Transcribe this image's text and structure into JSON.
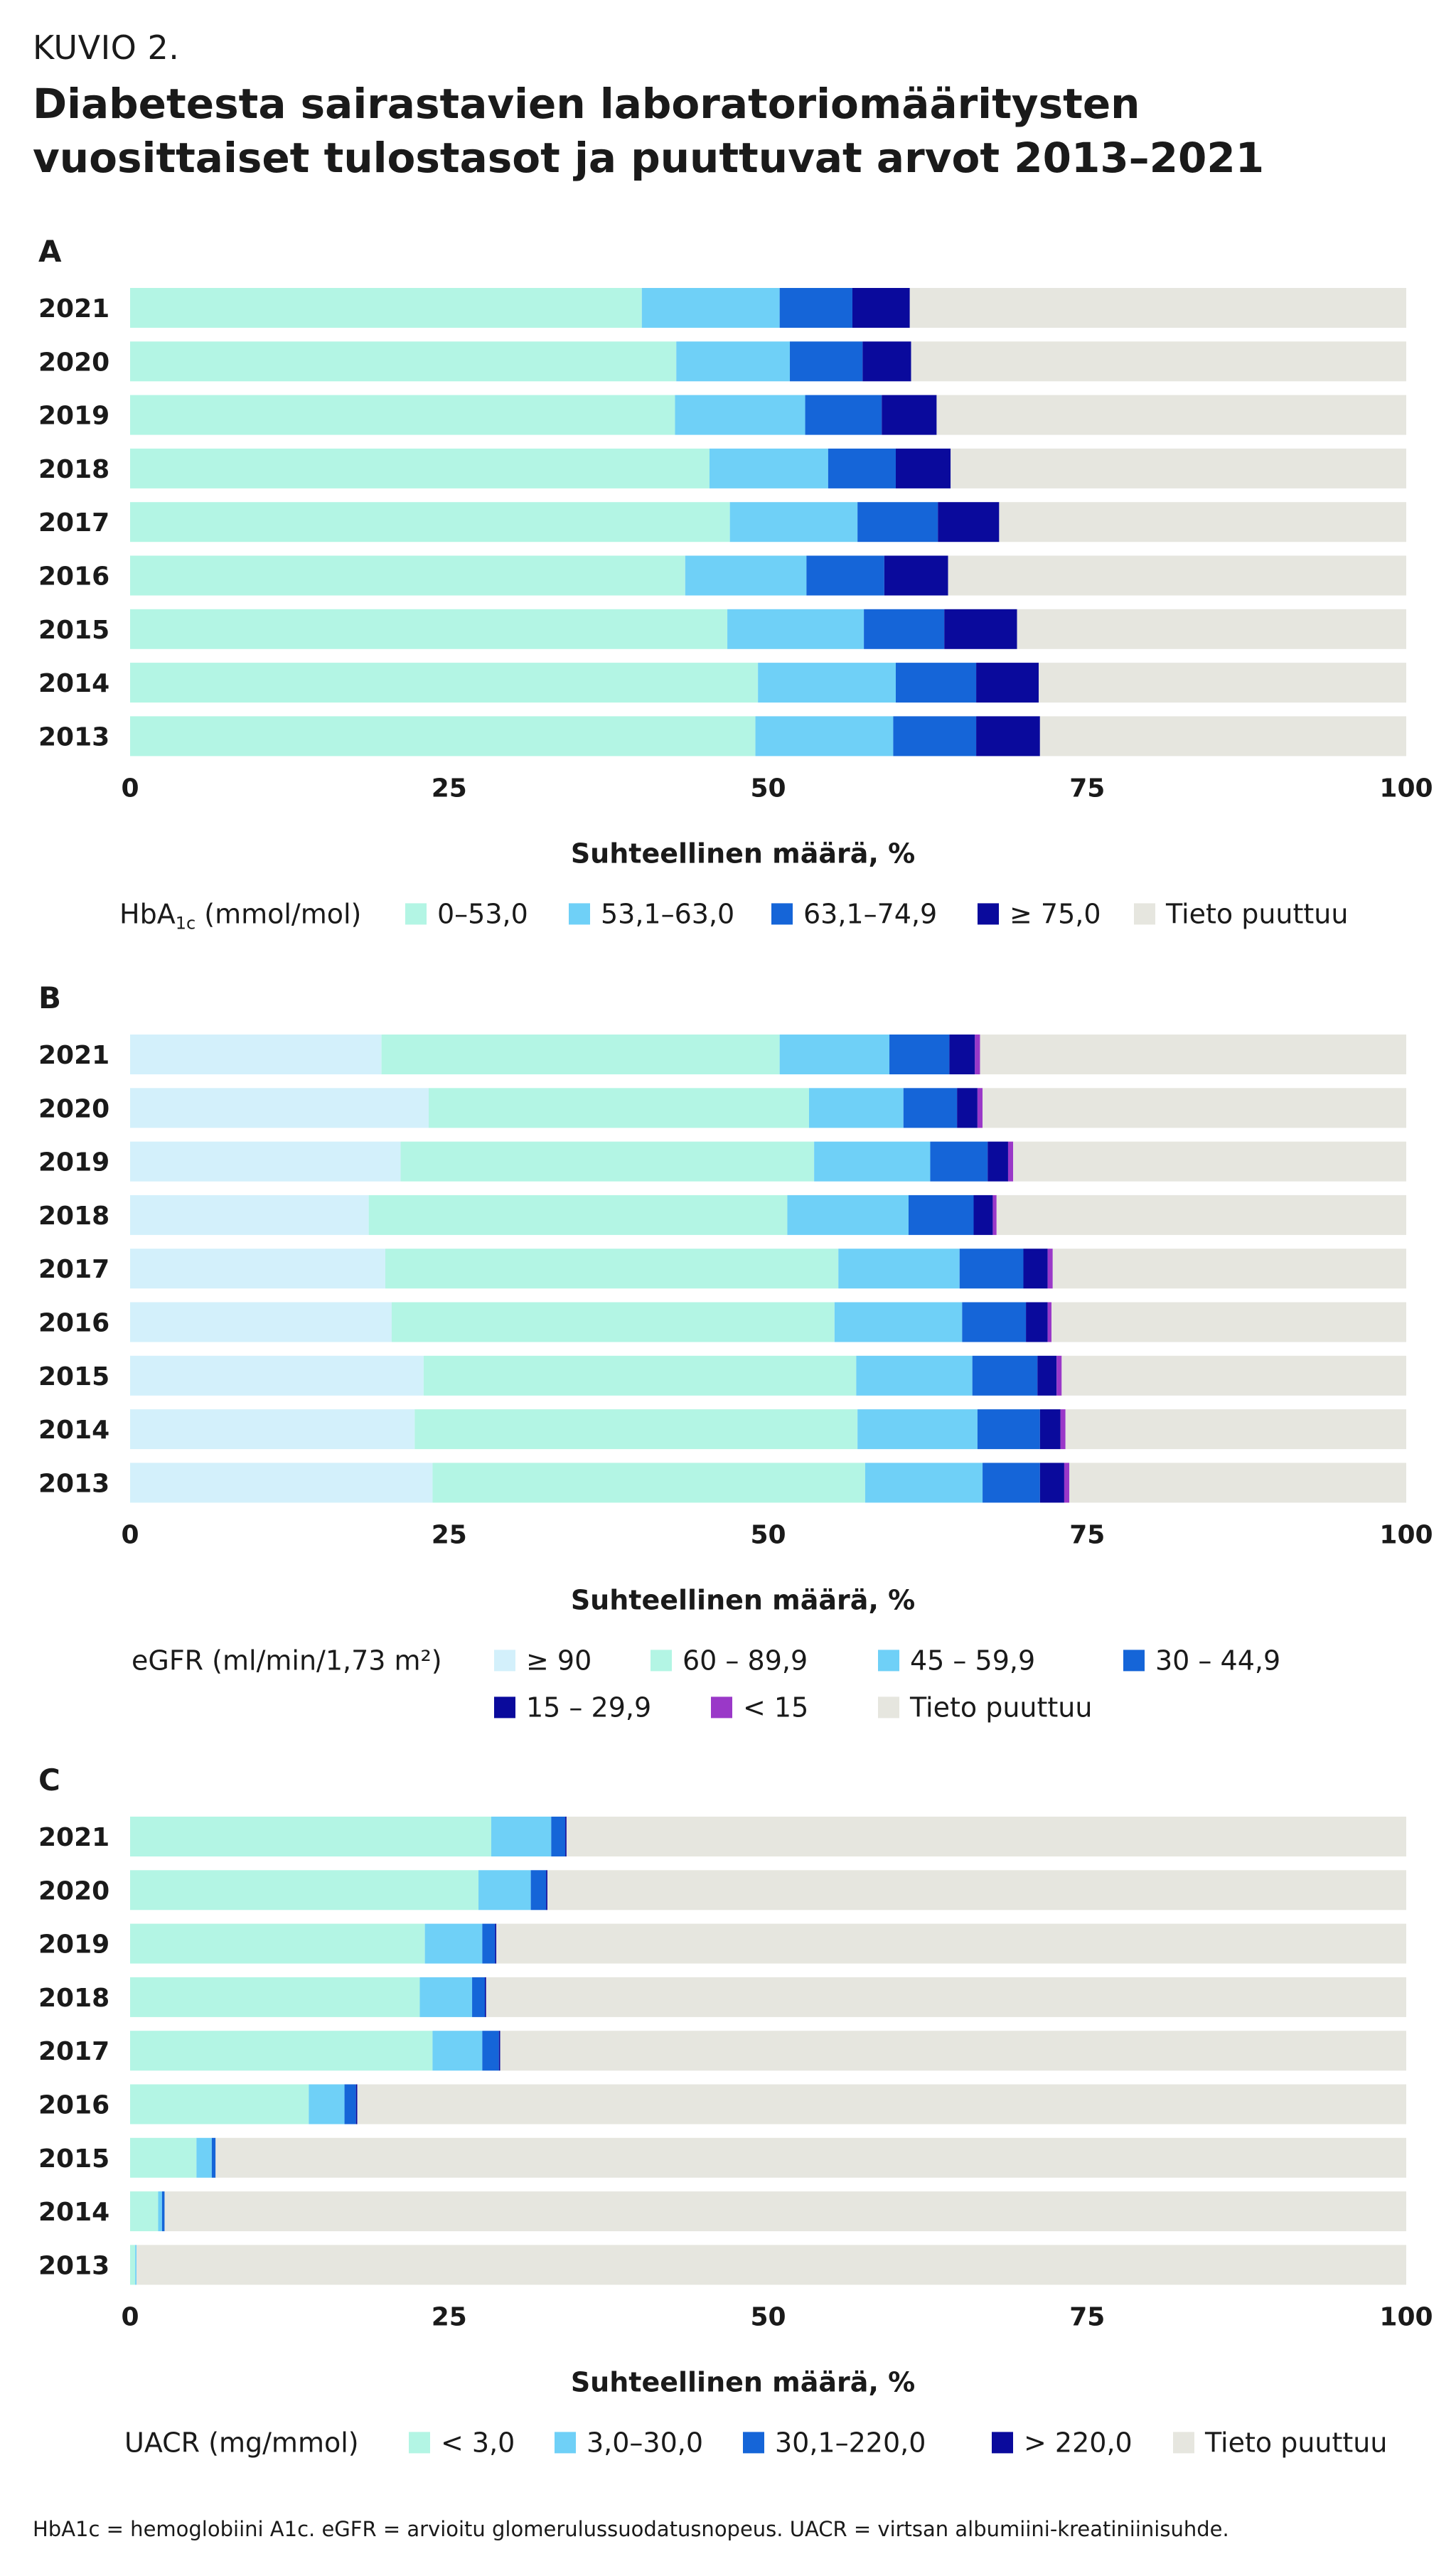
{
  "header": {
    "kicker": "KUVIO 2.",
    "title": "Diabetesta sairastavien laboratoriomääritysten vuosittaiset tulostasot ja puuttuvat arvot 2013–2021"
  },
  "footnote": "HbA1c = hemoglobiini A1c. eGFR = arvioitu glomerulussuodatusnopeus. UACR = virtsan albumiini-kreatiniinisuhde.",
  "chart_data": [
    {
      "type": "bar",
      "orientation": "horizontal",
      "stacked": true,
      "panel": "A",
      "categories": [
        "2021",
        "2020",
        "2019",
        "2018",
        "2017",
        "2016",
        "2015",
        "2014",
        "2013"
      ],
      "xlabel": "Suhteellinen määrä, %",
      "xlim": [
        0,
        100
      ],
      "xticks": [
        0,
        25,
        50,
        75,
        100
      ],
      "legend_title": "HbA1c (mmol/mol)",
      "legend_position": "bottom",
      "series": [
        {
          "name": "0–53,0",
          "color": "#b3f5e4",
          "values": [
            40.1,
            42.8,
            42.7,
            45.4,
            47.0,
            43.5,
            46.8,
            49.2,
            49.0
          ]
        },
        {
          "name": "53,1–63,0",
          "color": "#6fd0f7",
          "values": [
            10.8,
            8.9,
            10.2,
            9.3,
            10.0,
            9.5,
            10.7,
            10.8,
            10.8
          ]
        },
        {
          "name": "63,1–74,9",
          "color": "#1565d8",
          "values": [
            5.7,
            5.7,
            6.0,
            5.3,
            6.3,
            6.1,
            6.3,
            6.3,
            6.5
          ]
        },
        {
          "name": "≥ 75,0",
          "color": "#0a0a9c",
          "values": [
            4.5,
            3.8,
            4.3,
            4.3,
            4.8,
            5.0,
            5.7,
            4.9,
            5.0
          ]
        },
        {
          "name": "Tieto puuttuu",
          "color": "#e6e6df",
          "values": [
            38.9,
            38.8,
            36.8,
            35.7,
            31.9,
            35.9,
            30.5,
            28.8,
            28.7
          ]
        }
      ]
    },
    {
      "type": "bar",
      "orientation": "horizontal",
      "stacked": true,
      "panel": "B",
      "categories": [
        "2021",
        "2020",
        "2019",
        "2018",
        "2017",
        "2016",
        "2015",
        "2014",
        "2013"
      ],
      "xlabel": "Suhteellinen määrä, %",
      "xlim": [
        0,
        100
      ],
      "xticks": [
        0,
        25,
        50,
        75,
        100
      ],
      "legend_title": "eGFR (ml/min/1,73 m²)",
      "legend_position": "bottom",
      "series": [
        {
          "name": "≥ 90",
          "color": "#d3f0fb",
          "values": [
            19.7,
            23.4,
            21.2,
            18.7,
            20.0,
            20.5,
            23.0,
            22.3,
            23.7
          ]
        },
        {
          "name": "60 – 89,9",
          "color": "#b3f5e4",
          "values": [
            31.2,
            29.8,
            32.4,
            32.8,
            35.5,
            34.7,
            33.9,
            34.7,
            33.9
          ]
        },
        {
          "name": "45 – 59,9",
          "color": "#6fd0f7",
          "values": [
            8.6,
            7.4,
            9.1,
            9.5,
            9.5,
            10.0,
            9.1,
            9.4,
            9.2
          ]
        },
        {
          "name": "30 – 44,9",
          "color": "#1565d8",
          "values": [
            4.7,
            4.2,
            4.5,
            5.1,
            5.0,
            5.0,
            5.1,
            4.9,
            4.5
          ]
        },
        {
          "name": "15 – 29,9",
          "color": "#0a0a9c",
          "values": [
            2.0,
            1.6,
            1.6,
            1.5,
            1.9,
            1.7,
            1.5,
            1.6,
            1.9
          ]
        },
        {
          "name": "< 15",
          "color": "#9a38c8",
          "values": [
            0.4,
            0.4,
            0.4,
            0.3,
            0.4,
            0.3,
            0.4,
            0.4,
            0.4
          ]
        },
        {
          "name": "Tieto puuttuu",
          "color": "#e6e6df",
          "values": [
            33.4,
            33.2,
            30.8,
            32.1,
            27.7,
            27.8,
            27.0,
            26.7,
            26.4
          ]
        }
      ]
    },
    {
      "type": "bar",
      "orientation": "horizontal",
      "stacked": true,
      "panel": "C",
      "categories": [
        "2021",
        "2020",
        "2019",
        "2018",
        "2017",
        "2016",
        "2015",
        "2014",
        "2013"
      ],
      "xlabel": "Suhteellinen määrä, %",
      "xlim": [
        0,
        100
      ],
      "xticks": [
        0,
        25,
        50,
        75,
        100
      ],
      "legend_title": "UACR (mg/mmol)",
      "legend_position": "bottom",
      "series": [
        {
          "name": "< 3,0",
          "color": "#b3f5e4",
          "values": [
            28.3,
            27.3,
            23.1,
            22.7,
            23.7,
            14.0,
            5.2,
            2.2,
            0.4
          ]
        },
        {
          "name": "3,0–30,0",
          "color": "#6fd0f7",
          "values": [
            4.7,
            4.1,
            4.5,
            4.1,
            3.9,
            2.8,
            1.2,
            0.3,
            0.1
          ]
        },
        {
          "name": "30,1–220,0",
          "color": "#1565d8",
          "values": [
            1.1,
            1.2,
            1.0,
            1.0,
            1.3,
            0.9,
            0.3,
            0.2,
            0.0
          ]
        },
        {
          "name": "> 220,0",
          "color": "#0a0a9c",
          "values": [
            0.1,
            0.1,
            0.1,
            0.1,
            0.1,
            0.1,
            0.0,
            0.0,
            0.0
          ]
        },
        {
          "name": "Tieto puuttuu",
          "color": "#e6e6df",
          "values": [
            65.8,
            67.3,
            71.3,
            72.1,
            71.0,
            82.2,
            93.3,
            97.3,
            99.5
          ]
        }
      ]
    }
  ]
}
